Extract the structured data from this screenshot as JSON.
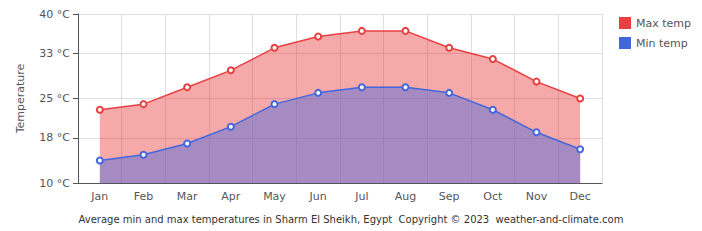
{
  "chart_data": {
    "type": "area",
    "title": "Average min and max temperatures in Sharm El Sheikh, Egypt  Copyright © 2023  weather-and-climate.com",
    "ylabel": "Temperature",
    "categories": [
      "Jan",
      "Feb",
      "Mar",
      "Apr",
      "May",
      "Jun",
      "Jul",
      "Aug",
      "Sep",
      "Oct",
      "Nov",
      "Dec"
    ],
    "series": [
      {
        "name": "Max temp",
        "color": "#e84040",
        "marker": "circle",
        "values": [
          23,
          24,
          27,
          30,
          34,
          36,
          37,
          37,
          34,
          32,
          28,
          25
        ]
      },
      {
        "name": "Min temp",
        "color": "#4466dd",
        "marker": "circle",
        "values": [
          14,
          15,
          17,
          20,
          24,
          26,
          27,
          27,
          26,
          23,
          19,
          16
        ]
      }
    ],
    "ylim": [
      10,
      40
    ],
    "yticks": [
      {
        "value": 10,
        "label": "10 °C"
      },
      {
        "value": 18,
        "label": "18 °C"
      },
      {
        "value": 25,
        "label": "25 °C"
      },
      {
        "value": 33,
        "label": "33 °C"
      },
      {
        "value": 40,
        "label": "40 °C"
      }
    ],
    "grid": true,
    "legend": "upper right"
  }
}
